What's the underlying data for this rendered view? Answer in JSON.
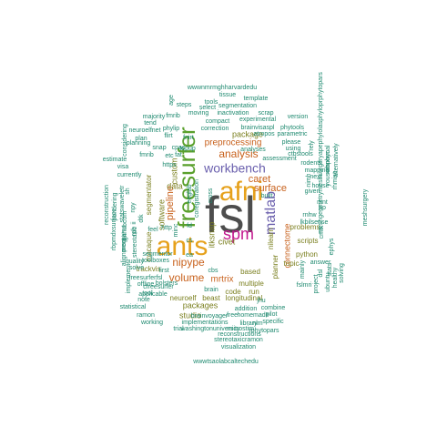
{
  "word_cloud": {
    "colors": {
      "dark_gray": "#4d4d4d",
      "orange": "#e6a11c",
      "green": "#5aa02c",
      "magenta": "#c3178f",
      "purple": "#6a5fad",
      "brown": "#c8611c",
      "teal": "#1f8a70",
      "olive": "#7a7f1e"
    },
    "words": [
      {
        "text": "fsl",
        "color": "dark_gray"
      },
      {
        "text": "afni",
        "color": "orange"
      },
      {
        "text": "ants",
        "color": "orange"
      },
      {
        "text": "freesurfer",
        "color": "green"
      },
      {
        "text": "spm",
        "color": "magenta"
      },
      {
        "text": "matlab",
        "color": "purple"
      },
      {
        "text": "workbench",
        "color": "purple"
      },
      {
        "text": "analysis",
        "color": "brown"
      },
      {
        "text": "nipype",
        "color": "brown"
      },
      {
        "text": "volume",
        "color": "brown"
      },
      {
        "text": "caret",
        "color": "brown"
      },
      {
        "text": "surface",
        "color": "brown"
      },
      {
        "text": "pipeline",
        "color": "brown"
      },
      {
        "text": "mrtrix",
        "color": "brown"
      },
      {
        "text": "preprocessing",
        "color": "brown"
      },
      {
        "text": "connectome",
        "color": "brown"
      },
      {
        "text": "package",
        "color": "olive"
      },
      {
        "text": "data",
        "color": "olive"
      },
      {
        "text": "custom",
        "color": "olive"
      },
      {
        "text": "itksnap",
        "color": "olive"
      },
      {
        "text": "software",
        "color": "olive"
      },
      {
        "text": "packages",
        "color": "olive"
      },
      {
        "text": "studio",
        "color": "olive"
      },
      {
        "text": "civet",
        "color": "olive"
      },
      {
        "text": "segmentator",
        "color": "olive"
      },
      {
        "text": "neuroelf",
        "color": "olive"
      },
      {
        "text": "beast",
        "color": "olive"
      },
      {
        "text": "longitudinal",
        "color": "olive"
      },
      {
        "text": "based",
        "color": "olive"
      },
      {
        "text": "multiple",
        "color": "olive"
      },
      {
        "text": "code",
        "color": "olive"
      },
      {
        "text": "run",
        "color": "olive"
      },
      {
        "text": "planner",
        "color": "olive"
      },
      {
        "text": "scripts",
        "color": "olive"
      },
      {
        "text": "problems",
        "color": "olive"
      },
      {
        "text": "python",
        "color": "olive"
      },
      {
        "text": "topic",
        "color": "olive"
      },
      {
        "text": "macaque",
        "color": "olive"
      },
      {
        "text": "trackvis",
        "color": "olive"
      },
      {
        "text": "nilearn",
        "color": "olive"
      },
      {
        "text": "brainvoyager",
        "color": "teal"
      },
      {
        "text": "implementations",
        "color": "teal"
      },
      {
        "text": "washingtonuniversity",
        "color": "teal"
      },
      {
        "text": "reconstructions",
        "color": "teal"
      },
      {
        "text": "stereotaxicramon",
        "color": "teal"
      },
      {
        "text": "visualization",
        "color": "teal"
      },
      {
        "text": "wwwtsaolabcaltechedu",
        "color": "teal"
      },
      {
        "text": "microstim",
        "color": "teal"
      },
      {
        "text": "trial",
        "color": "teal"
      },
      {
        "text": "rphytopars",
        "color": "teal"
      },
      {
        "text": "library",
        "color": "teal"
      },
      {
        "text": "nlm",
        "color": "teal"
      },
      {
        "text": "specific",
        "color": "teal"
      },
      {
        "text": "free",
        "color": "teal"
      },
      {
        "text": "homemade",
        "color": "teal"
      },
      {
        "text": "addition",
        "color": "teal"
      },
      {
        "text": "combine",
        "color": "teal"
      },
      {
        "text": "pilot",
        "color": "teal"
      },
      {
        "text": "statistical",
        "color": "teal"
      },
      {
        "text": "working",
        "color": "teal"
      },
      {
        "text": "ramon",
        "color": "teal"
      },
      {
        "text": "note",
        "color": "teal"
      },
      {
        "text": "applicable",
        "color": "teal"
      },
      {
        "text": "cfreesurfer",
        "color": "teal"
      },
      {
        "text": "offline",
        "color": "teal"
      },
      {
        "text": "freesurferfsl",
        "color": "teal"
      },
      {
        "text": "tool",
        "color": "teal"
      },
      {
        "text": "solve",
        "color": "teal"
      },
      {
        "text": "quality",
        "color": "teal"
      },
      {
        "text": "wwwnmrmghharvardedu",
        "color": "teal"
      },
      {
        "text": "tissue",
        "color": "teal"
      },
      {
        "text": "tools",
        "color": "teal"
      },
      {
        "text": "template",
        "color": "teal"
      },
      {
        "text": "steps",
        "color": "teal"
      },
      {
        "text": "select",
        "color": "teal"
      },
      {
        "text": "segmentation",
        "color": "teal"
      },
      {
        "text": "moving",
        "color": "teal"
      },
      {
        "text": "inactivation",
        "color": "teal"
      },
      {
        "text": "scrap",
        "color": "teal"
      },
      {
        "text": "compact",
        "color": "teal"
      },
      {
        "text": "experimental",
        "color": "teal"
      },
      {
        "text": "version",
        "color": "teal"
      },
      {
        "text": "correction",
        "color": "teal"
      },
      {
        "text": "brainvisaspl",
        "color": "teal"
      },
      {
        "text": "phytools",
        "color": "teal"
      },
      {
        "text": "atropos",
        "color": "teal"
      },
      {
        "text": "parametric",
        "color": "teal"
      },
      {
        "text": "please",
        "color": "teal"
      },
      {
        "text": "using",
        "color": "teal"
      },
      {
        "text": "analyses",
        "color": "teal"
      },
      {
        "text": "ctbstools",
        "color": "teal"
      },
      {
        "text": "rodents",
        "color": "teal"
      },
      {
        "text": "mapping",
        "color": "teal"
      },
      {
        "text": "nimh",
        "color": "teal"
      },
      {
        "text": "assessment",
        "color": "teal"
      },
      {
        "text": "built",
        "color": "teal"
      },
      {
        "text": "given",
        "color": "teal"
      },
      {
        "text": "house",
        "color": "teal"
      },
      {
        "text": "next",
        "color": "teal"
      },
      {
        "text": "mnt",
        "color": "teal"
      },
      {
        "text": "pp",
        "color": "teal"
      },
      {
        "text": "rnhw",
        "color": "teal"
      },
      {
        "text": "lkbilsense",
        "color": "teal"
      },
      {
        "text": "cmtk",
        "color": "teal"
      },
      {
        "text": "answer",
        "color": "teal"
      },
      {
        "text": "ephys",
        "color": "teal"
      },
      {
        "text": "mainly",
        "color": "teal"
      },
      {
        "text": "fslmri",
        "color": "teal"
      },
      {
        "text": "project",
        "color": "teal"
      },
      {
        "text": "dsl",
        "color": "teal"
      },
      {
        "text": "ubuntu",
        "color": "teal"
      },
      {
        "text": "stats",
        "color": "teal"
      },
      {
        "text": "healthy",
        "color": "teal"
      },
      {
        "text": "solving",
        "color": "teal"
      },
      {
        "text": "meshsurgery",
        "color": "teal"
      },
      {
        "text": "meshgeometrymeshsurgeryapephylolasphyloprphytopars",
        "color": "teal"
      },
      {
        "text": "yousemphyc",
        "color": "teal"
      },
      {
        "text": "abnormal",
        "color": "teal"
      },
      {
        "text": "alternatively",
        "color": "teal"
      },
      {
        "text": "rhmisc",
        "color": "teal"
      },
      {
        "text": "rely",
        "color": "teal"
      },
      {
        "text": "estimate",
        "color": "teal"
      },
      {
        "text": "visa",
        "color": "teal"
      },
      {
        "text": "currently",
        "color": "teal"
      },
      {
        "text": "considering",
        "color": "teal"
      },
      {
        "text": "planning",
        "color": "teal"
      },
      {
        "text": "majority",
        "color": "teal"
      },
      {
        "text": "tend",
        "color": "teal"
      },
      {
        "text": "neuroelfnet",
        "color": "teal"
      },
      {
        "text": "plan",
        "color": "teal"
      },
      {
        "text": "snap",
        "color": "teal"
      },
      {
        "text": "fmrib",
        "color": "teal"
      },
      {
        "text": "flirt",
        "color": "teal"
      },
      {
        "text": "phylip",
        "color": "teal"
      },
      {
        "text": "fnirt",
        "color": "teal"
      },
      {
        "text": "cpac",
        "color": "teal"
      },
      {
        "text": "etc",
        "color": "teal"
      },
      {
        "text": "https",
        "color": "teal"
      },
      {
        "text": "age",
        "color": "teal"
      },
      {
        "text": "topup",
        "color": "teal"
      },
      {
        "text": "fat",
        "color": "teal"
      },
      {
        "text": "sh",
        "color": "teal"
      },
      {
        "text": "npy",
        "color": "teal"
      },
      {
        "text": "dtk",
        "color": "teal"
      },
      {
        "text": "ii",
        "color": "teal"
      },
      {
        "text": "rpb",
        "color": "teal"
      },
      {
        "text": "fmrib",
        "color": "teal"
      },
      {
        "text": "feel",
        "color": "teal"
      },
      {
        "text": "githubcom",
        "color": "teal"
      },
      {
        "text": "statswaveletr",
        "color": "teal"
      },
      {
        "text": "pondering",
        "color": "teal"
      },
      {
        "text": "reconstruction",
        "color": "teal"
      },
      {
        "text": "programs",
        "color": "teal"
      },
      {
        "text": "stereotaxic",
        "color": "teal"
      },
      {
        "text": "rbpmdxsurface",
        "color": "teal"
      },
      {
        "text": "alignment",
        "color": "teal"
      },
      {
        "text": "implement",
        "color": "teal"
      },
      {
        "text": "toolboxes",
        "color": "teal"
      },
      {
        "text": "segmentor",
        "color": "teal"
      },
      {
        "text": "cross",
        "color": "teal"
      },
      {
        "text": "coregistration",
        "color": "teal"
      },
      {
        "text": "http",
        "color": "teal"
      },
      {
        "text": "cbs",
        "color": "teal"
      },
      {
        "text": "brain",
        "color": "teal"
      },
      {
        "text": "first",
        "color": "teal"
      },
      {
        "text": "bolsters",
        "color": "teal"
      },
      {
        "text": "eeglab",
        "color": "teal"
      },
      {
        "text": "minc",
        "color": "teal"
      },
      {
        "text": "ea",
        "color": "teal"
      },
      {
        "text": "cs",
        "color": "teal"
      },
      {
        "text": "fd",
        "color": "teal"
      },
      {
        "text": "jhu",
        "color": "teal"
      }
    ]
  }
}
